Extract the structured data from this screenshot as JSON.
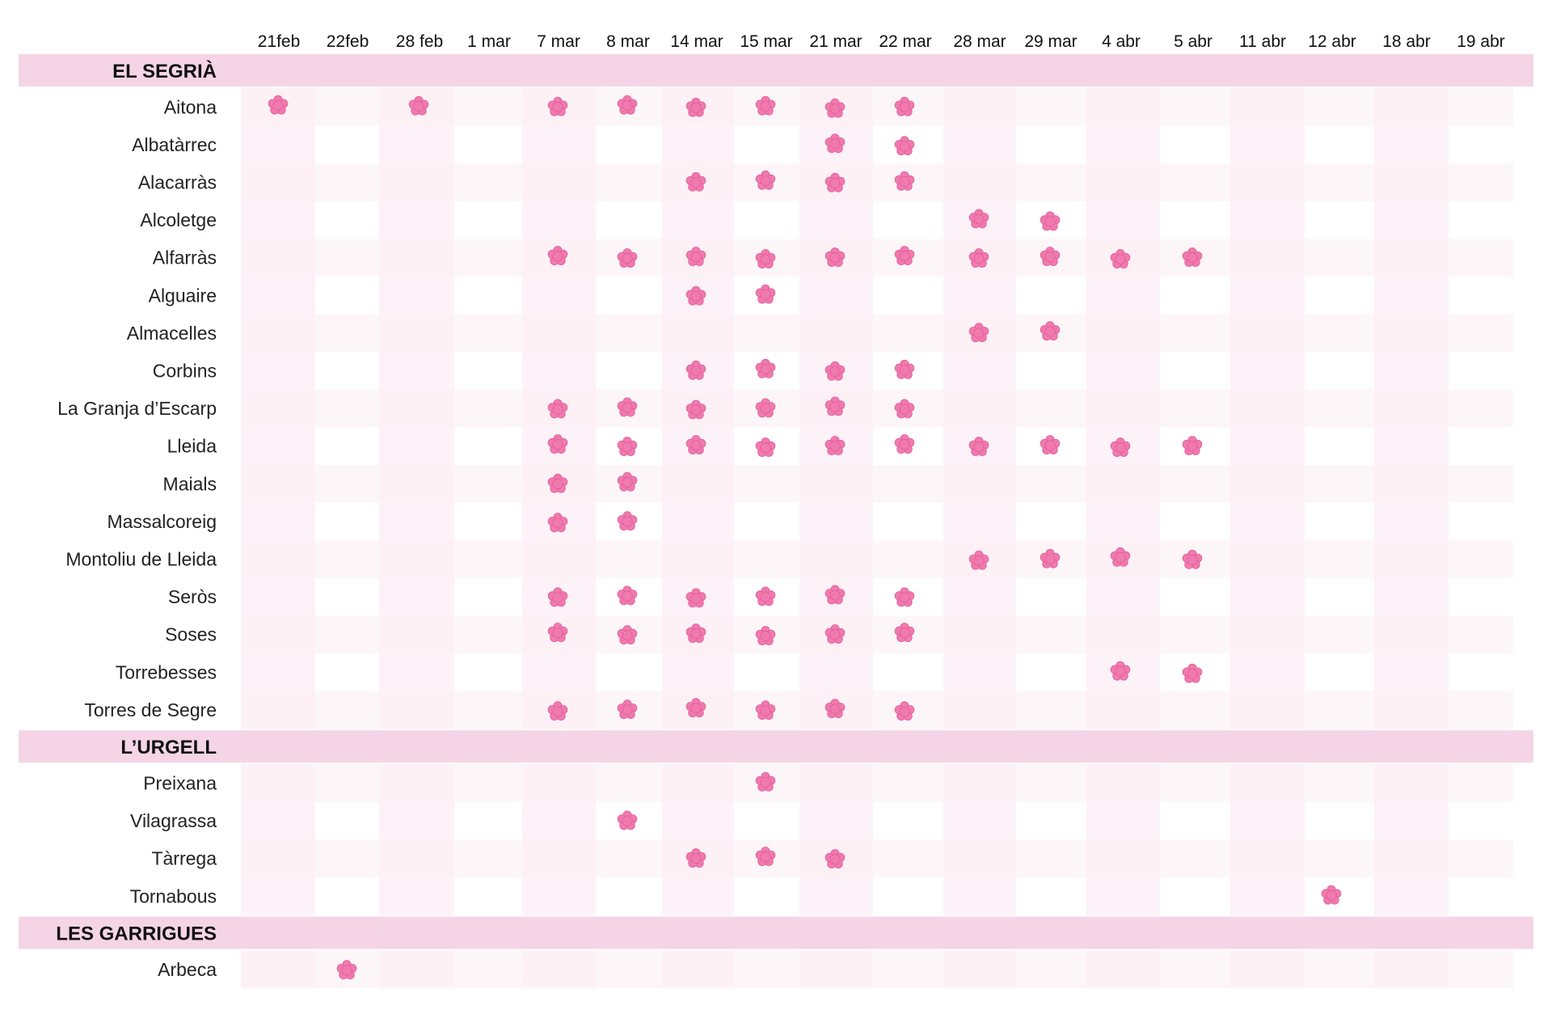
{
  "chart_data": {
    "type": "table",
    "columns": [
      "21feb",
      "22feb",
      "28 feb",
      "1 mar",
      "7 mar",
      "8 mar",
      "14 mar",
      "15 mar",
      "21 mar",
      "22 mar",
      "28 mar",
      "29 mar",
      "4 abr",
      "5 abr",
      "11 abr",
      "12 abr",
      "18 abr",
      "19 abr"
    ],
    "groups": [
      {
        "name": "EL SEGRIÀ",
        "rows": [
          {
            "name": "Aitona",
            "dates": [
              "21feb",
              "28 feb",
              "7 mar",
              "8 mar",
              "14 mar",
              "15 mar",
              "21 mar",
              "22 mar"
            ]
          },
          {
            "name": "Albatàrrec",
            "dates": [
              "21 mar",
              "22 mar"
            ]
          },
          {
            "name": "Alacarràs",
            "dates": [
              "14 mar",
              "15 mar",
              "21 mar",
              "22 mar"
            ]
          },
          {
            "name": "Alcoletge",
            "dates": [
              "28 mar",
              "29 mar"
            ]
          },
          {
            "name": "Alfarràs",
            "dates": [
              "7 mar",
              "8 mar",
              "14 mar",
              "15 mar",
              "21 mar",
              "22 mar",
              "28 mar",
              "29 mar",
              "4 abr",
              "5 abr"
            ]
          },
          {
            "name": "Alguaire",
            "dates": [
              "14 mar",
              "15 mar"
            ]
          },
          {
            "name": "Almacelles",
            "dates": [
              "28 mar",
              "29 mar"
            ]
          },
          {
            "name": "Corbins",
            "dates": [
              "14 mar",
              "15 mar",
              "21 mar",
              "22 mar"
            ]
          },
          {
            "name": "La Granja d’Escarp",
            "dates": [
              "7 mar",
              "8 mar",
              "14 mar",
              "15 mar",
              "21 mar",
              "22 mar"
            ]
          },
          {
            "name": "Lleida",
            "dates": [
              "7 mar",
              "8 mar",
              "14 mar",
              "15 mar",
              "21 mar",
              "22 mar",
              "28 mar",
              "29 mar",
              "4 abr",
              "5 abr"
            ]
          },
          {
            "name": "Maials",
            "dates": [
              "7 mar",
              "8 mar"
            ]
          },
          {
            "name": "Massalcoreig",
            "dates": [
              "7 mar",
              "8 mar"
            ]
          },
          {
            "name": "Montoliu de Lleida",
            "dates": [
              "28 mar",
              "29 mar",
              "4 abr",
              "5 abr"
            ]
          },
          {
            "name": "Seròs",
            "dates": [
              "7 mar",
              "8 mar",
              "14 mar",
              "15 mar",
              "21 mar",
              "22 mar"
            ]
          },
          {
            "name": "Soses",
            "dates": [
              "7 mar",
              "8 mar",
              "14 mar",
              "15 mar",
              "21 mar",
              "22 mar"
            ]
          },
          {
            "name": "Torrebesses",
            "dates": [
              "4 abr",
              "5 abr"
            ]
          },
          {
            "name": "Torres de Segre",
            "dates": [
              "7 mar",
              "8 mar",
              "14 mar",
              "15 mar",
              "21 mar",
              "22 mar"
            ]
          }
        ]
      },
      {
        "name": "L’URGELL",
        "rows": [
          {
            "name": "Preixana",
            "dates": [
              "15 mar"
            ]
          },
          {
            "name": "Vilagrassa",
            "dates": [
              "8 mar"
            ]
          },
          {
            "name": "Tàrrega",
            "dates": [
              "14 mar",
              "15 mar",
              "21 mar"
            ]
          },
          {
            "name": "Tornabous",
            "dates": [
              "12 abr"
            ]
          }
        ]
      },
      {
        "name": "LES GARRIGUES",
        "rows": [
          {
            "name": "Arbeca",
            "dates": [
              "22feb"
            ]
          }
        ]
      }
    ],
    "colors": {
      "group_band": "#f5d5e5",
      "cell_tint": "#fdf0f6",
      "flower_fill": "#f07aae",
      "flower_outline": "#e25d98"
    },
    "marker_icon": "blossom-icon"
  }
}
